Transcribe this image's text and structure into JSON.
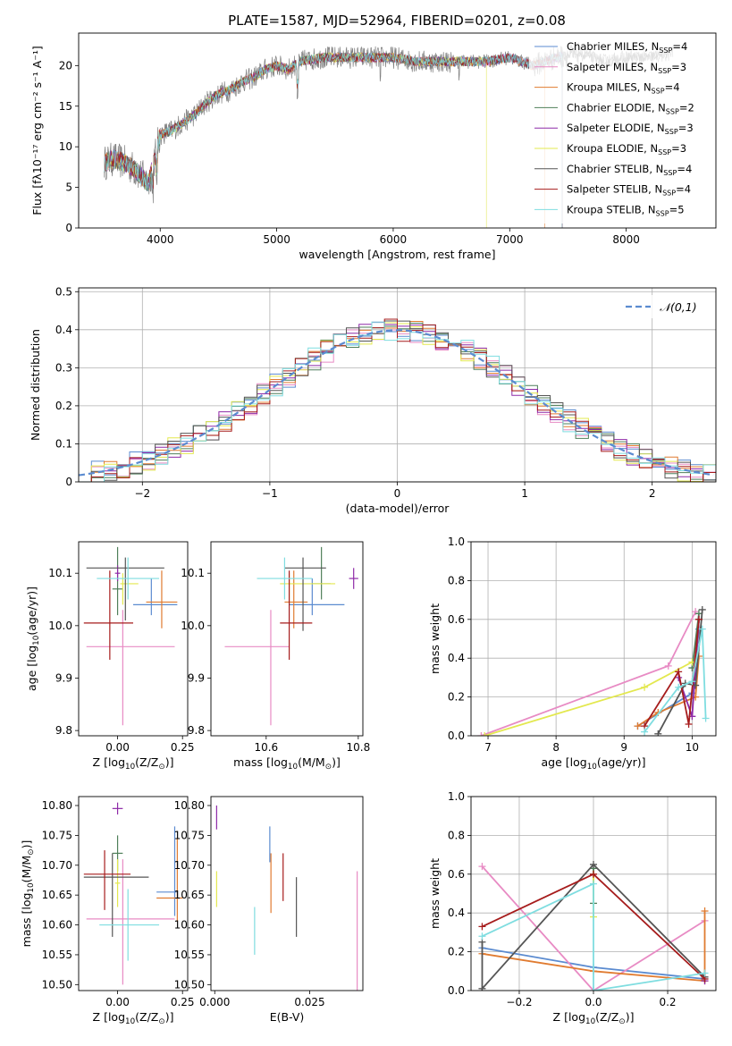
{
  "chart_data": [
    {
      "type": "line",
      "title": "PLATE=1587, MJD=52964, FIBERID=0201, z=0.08",
      "xlabel": "wavelength [Angstrom, rest frame]",
      "ylabel": "Flux [fλ10⁻¹⁷ erg cm⁻² s⁻¹ A⁻¹]",
      "xlim": [
        3300,
        8770
      ],
      "ylim": [
        0,
        24
      ],
      "xticks": [
        4000,
        5000,
        6000,
        7000,
        8000
      ],
      "yticks": [
        0,
        5,
        10,
        15,
        20
      ],
      "grid": false,
      "legend_position": "top-right",
      "continuum": {
        "x": [
          3520,
          3600,
          3700,
          3800,
          3900,
          3950,
          4000,
          4100,
          4200,
          4300,
          4400,
          4500,
          4600,
          4700,
          4800,
          4900,
          5000,
          5100,
          5200,
          5400,
          5600,
          5800,
          6000,
          6200,
          6400,
          6600,
          6800,
          7000,
          7200,
          7400,
          7600,
          7800,
          8000,
          8200,
          8400
        ],
        "y": [
          8,
          8.5,
          8,
          7,
          5.5,
          8.5,
          11.5,
          12,
          13,
          14,
          15.5,
          16.5,
          17,
          18,
          18.5,
          19.5,
          20,
          19.5,
          20.5,
          21,
          21,
          21,
          21,
          20.5,
          20.5,
          20.5,
          20.5,
          21,
          20,
          21,
          21.5,
          20.5,
          21,
          21,
          21.5
        ]
      },
      "series": [
        {
          "name": "Chabrier MILES, N$_{SSP}$=4",
          "color": "#5b8bd0"
        },
        {
          "name": "Salpeter MILES, N$_{SSP}$=3",
          "color": "#e88bc4"
        },
        {
          "name": "Kroupa MILES, N$_{SSP}$=4",
          "color": "#e07b30"
        },
        {
          "name": "Chabrier ELODIE, N$_{SSP}$=2",
          "color": "#4f7f5a"
        },
        {
          "name": "Salpeter ELODIE, N$_{SSP}$=3",
          "color": "#8e2aa8"
        },
        {
          "name": "Kroupa ELODIE, N$_{SSP}$=3",
          "color": "#e3e84f"
        },
        {
          "name": "Chabrier STELIB, N$_{SSP}$=4",
          "color": "#555555"
        },
        {
          "name": "Salpeter STELIB, N$_{SSP}$=4",
          "color": "#a61c1c"
        },
        {
          "name": "Kroupa STELIB, N$_{SSP}$=5",
          "color": "#7fdde0"
        }
      ]
    },
    {
      "type": "histogram",
      "xlabel": "(data-model)/error",
      "ylabel": "Normed distribution",
      "xlim": [
        -2.5,
        2.5
      ],
      "ylim": [
        0,
        0.51
      ],
      "xticks": [
        -2,
        -1,
        0,
        1,
        2
      ],
      "yticks": [
        0,
        0.1,
        0.2,
        0.3,
        0.4,
        0.5
      ],
      "grid": true,
      "bin_width": 0.1,
      "legend_position": "top-right",
      "reference_curve": {
        "name": "$\\mathcal{N}(0,1)$",
        "mean": 0,
        "sigma": 1,
        "color": "#5b8bd0"
      }
    },
    {
      "type": "scatter",
      "id": "age-vs-Z",
      "xlabel": "Z [log$_{10}$(Z/Z$_\\odot$)]",
      "ylabel": "age  [log$_{10}$(age/yr)]",
      "xlim": [
        -0.15,
        0.27
      ],
      "ylim": [
        9.79,
        10.16
      ],
      "xticks": [
        0,
        0.25
      ],
      "xticklabels": [
        "0.00",
        "0.25"
      ],
      "yticks": [
        9.8,
        9.9,
        10.0,
        10.1
      ],
      "yticklabels": [
        "9.8",
        "9.9",
        "10.0",
        "10.1"
      ],
      "points": [
        {
          "color": "#5b8bd0",
          "x": 0.13,
          "xerr": [
            0.07,
            0.1
          ],
          "y": 10.04,
          "yerr": [
            0.02,
            0.05
          ]
        },
        {
          "color": "#e88bc4",
          "x": 0.02,
          "xerr": [
            0.14,
            0.2
          ],
          "y": 9.96,
          "yerr": [
            0.15,
            0.07
          ]
        },
        {
          "color": "#e07b30",
          "x": 0.17,
          "xerr": [
            0.06,
            0.06
          ],
          "y": 10.045,
          "yerr": [
            0.05,
            0.06
          ]
        },
        {
          "color": "#4f7f5a",
          "x": 0.0,
          "xerr": [
            0.02,
            0.02
          ],
          "y": 10.07,
          "yerr": [
            0.05,
            0.08
          ]
        },
        {
          "color": "#8e2aa8",
          "x": 0.0,
          "xerr": [
            0.01,
            0.01
          ],
          "y": 10.1,
          "yerr": [
            0.015,
            0.015
          ]
        },
        {
          "color": "#e3e84f",
          "x": 0.02,
          "xerr": [
            0.01,
            0.06
          ],
          "y": 10.08,
          "yerr": [
            0.04,
            0.02
          ]
        },
        {
          "color": "#555555",
          "x": 0.03,
          "xerr": [
            0.15,
            0.15
          ],
          "y": 10.11,
          "yerr": [
            0.1,
            0.02
          ]
        },
        {
          "color": "#a61c1c",
          "x": -0.03,
          "xerr": [
            0.1,
            0.09
          ],
          "y": 10.005,
          "yerr": [
            0.07,
            0.1
          ]
        },
        {
          "color": "#7fdde0",
          "x": 0.04,
          "xerr": [
            0.12,
            0.12
          ],
          "y": 10.09,
          "yerr": [
            0.04,
            0.04
          ]
        }
      ]
    },
    {
      "type": "scatter",
      "id": "age-vs-mass",
      "xlabel": "mass [log$_{10}$(M/M$_\\odot$)]",
      "ylabel": "",
      "xlim": [
        10.48,
        10.81
      ],
      "ylim": [
        9.79,
        10.16
      ],
      "xticks": [
        10.6,
        10.8
      ],
      "xticklabels": [
        "10.6",
        "10.8"
      ],
      "yticks": [
        9.8,
        9.9,
        10.0,
        10.1
      ],
      "yticklabels": [
        "9.8",
        "9.9",
        "10.0",
        "10.1"
      ],
      "points": [
        {
          "color": "#5b8bd0",
          "x": 10.7,
          "xerr": [
            0.05,
            0.07
          ],
          "y": 10.04,
          "yerr": [
            0.02,
            0.05
          ]
        },
        {
          "color": "#e88bc4",
          "x": 10.61,
          "xerr": [
            0.1,
            0.04
          ],
          "y": 9.96,
          "yerr": [
            0.15,
            0.07
          ]
        },
        {
          "color": "#e07b30",
          "x": 10.66,
          "xerr": [
            0.02,
            0.03
          ],
          "y": 10.045,
          "yerr": [
            0.05,
            0.06
          ]
        },
        {
          "color": "#4f7f5a",
          "x": 10.72,
          "xerr": [
            0.02,
            0.02
          ],
          "y": 10.08,
          "yerr": [
            0.03,
            0.07
          ]
        },
        {
          "color": "#8e2aa8",
          "x": 10.79,
          "xerr": [
            0.01,
            0.01
          ],
          "y": 10.09,
          "yerr": [
            0.02,
            0.02
          ]
        },
        {
          "color": "#e3e84f",
          "x": 10.65,
          "xerr": [
            0.02,
            0.1
          ],
          "y": 10.08,
          "yerr": [
            0.04,
            0.02
          ]
        },
        {
          "color": "#555555",
          "x": 10.68,
          "xerr": [
            0.04,
            0.05
          ],
          "y": 10.11,
          "yerr": [
            0.12,
            0.02
          ]
        },
        {
          "color": "#a61c1c",
          "x": 10.65,
          "xerr": [
            0.02,
            0.05
          ],
          "y": 10.005,
          "yerr": [
            0.07,
            0.1
          ]
        },
        {
          "color": "#7fdde0",
          "x": 10.64,
          "xerr": [
            0.06,
            0.06
          ],
          "y": 10.09,
          "yerr": [
            0.04,
            0.04
          ]
        }
      ]
    },
    {
      "type": "line",
      "id": "massweight-vs-age",
      "xlabel": "age  [log$_{10}$(age/yr)]",
      "ylabel": "mass weight",
      "xlim": [
        6.75,
        10.35
      ],
      "ylim": [
        0,
        1
      ],
      "xticks": [
        7,
        8,
        9,
        10
      ],
      "yticks": [
        0,
        0.2,
        0.4,
        0.6,
        0.8,
        1.0
      ],
      "yticklabels": [
        "0.0",
        "0.2",
        "0.4",
        "0.6",
        "0.8",
        "1.0"
      ],
      "grid": true,
      "series": [
        {
          "color": "#5b8bd0",
          "x": [
            9.2,
            10.0,
            10.1
          ],
          "y": [
            0.05,
            0.22,
            0.55
          ]
        },
        {
          "color": "#e88bc4",
          "x": [
            6.9,
            9.65,
            10.05
          ],
          "y": [
            0.0,
            0.36,
            0.64
          ]
        },
        {
          "color": "#e07b30",
          "x": [
            9.2,
            9.5,
            10.05,
            10.1
          ],
          "y": [
            0.05,
            0.12,
            0.2,
            0.41
          ]
        },
        {
          "color": "#4f7f5a",
          "x": [
            10.0,
            10.1
          ],
          "y": [
            0.35,
            0.63
          ]
        },
        {
          "color": "#8e2aa8",
          "x": [
            9.8,
            10.0,
            10.1
          ],
          "y": [
            0.3,
            0.1,
            0.6
          ]
        },
        {
          "color": "#e3e84f",
          "x": [
            6.95,
            9.3,
            10.0
          ],
          "y": [
            0.0,
            0.25,
            0.38
          ]
        },
        {
          "color": "#555555",
          "x": [
            9.5,
            9.9,
            10.05,
            10.15
          ],
          "y": [
            0.01,
            0.27,
            0.26,
            0.65
          ]
        },
        {
          "color": "#a61c1c",
          "x": [
            9.3,
            9.8,
            9.95,
            10.1
          ],
          "y": [
            0.05,
            0.33,
            0.06,
            0.6
          ]
        },
        {
          "color": "#7fdde0",
          "x": [
            9.3,
            9.8,
            10.0,
            10.15,
            10.2
          ],
          "y": [
            0.02,
            0.25,
            0.28,
            0.55,
            0.09
          ]
        }
      ]
    },
    {
      "type": "scatter",
      "id": "mass-vs-Z",
      "xlabel": "Z [log$_{10}$(Z/Z$_\\odot$)]",
      "ylabel": "mass [log$_{10}$(M/M$_\\odot$)]",
      "xlim": [
        -0.15,
        0.27
      ],
      "ylim": [
        10.49,
        10.815
      ],
      "xticks": [
        0,
        0.25
      ],
      "xticklabels": [
        "0.00",
        "0.25"
      ],
      "yticks": [
        10.5,
        10.55,
        10.6,
        10.65,
        10.7,
        10.75,
        10.8
      ],
      "yticklabels": [
        "10.50",
        "10.55",
        "10.60",
        "10.65",
        "10.70",
        "10.75",
        "10.80"
      ],
      "points": [
        {
          "color": "#5b8bd0",
          "x": 0.22,
          "xerr": [
            0.07,
            0.01
          ],
          "y": 10.655,
          "yerr": [
            0.04,
            0.11
          ]
        },
        {
          "color": "#e88bc4",
          "x": 0.02,
          "xerr": [
            0.14,
            0.2
          ],
          "y": 10.61,
          "yerr": [
            0.11,
            0.1
          ]
        },
        {
          "color": "#e07b30",
          "x": 0.23,
          "xerr": [
            0.08,
            0.02
          ],
          "y": 10.645,
          "yerr": [
            0.04,
            0.1
          ]
        },
        {
          "color": "#4f7f5a",
          "x": 0.0,
          "xerr": [
            0.02,
            0.02
          ],
          "y": 10.72,
          "yerr": [
            0.03,
            0.03
          ]
        },
        {
          "color": "#8e2aa8",
          "x": 0.0,
          "xerr": [
            0.02,
            0.02
          ],
          "y": 10.795,
          "yerr": [
            0.01,
            0.01
          ]
        },
        {
          "color": "#e3e84f",
          "x": 0.0,
          "xerr": [
            0.01,
            0.01
          ],
          "y": 10.67,
          "yerr": [
            0.04,
            0.04
          ]
        },
        {
          "color": "#555555",
          "x": -0.02,
          "xerr": [
            0.11,
            0.14
          ],
          "y": 10.68,
          "yerr": [
            0.1,
            0.04
          ]
        },
        {
          "color": "#a61c1c",
          "x": -0.05,
          "xerr": [
            0.08,
            0.1
          ],
          "y": 10.685,
          "yerr": [
            0.06,
            0.04
          ]
        },
        {
          "color": "#7fdde0",
          "x": 0.04,
          "xerr": [
            0.11,
            0.12
          ],
          "y": 10.6,
          "yerr": [
            0.06,
            0.06
          ]
        }
      ]
    },
    {
      "type": "scatter",
      "id": "mass-vs-EBV",
      "xlabel": "E(B-V)",
      "ylabel": "",
      "xlim": [
        -0.001,
        0.039
      ],
      "ylim": [
        10.49,
        10.815
      ],
      "xticks": [
        0,
        0.025
      ],
      "xticklabels": [
        "0.000",
        "0.025"
      ],
      "yticks": [
        10.5,
        10.55,
        10.6,
        10.65,
        10.7,
        10.75,
        10.8
      ],
      "yticklabels": [
        "10.50",
        "10.55",
        "10.60",
        "10.65",
        "10.70",
        "10.75",
        "10.80"
      ],
      "points": [
        {
          "color": "#5b8bd0",
          "x": 0.0145,
          "xerr": [
            0,
            0
          ],
          "y": 10.735,
          "yerr": [
            0.03,
            0.03
          ]
        },
        {
          "color": "#e88bc4",
          "x": 0.0375,
          "xerr": [
            0,
            0
          ],
          "y": 10.59,
          "yerr": [
            0.1,
            0.1
          ]
        },
        {
          "color": "#e07b30",
          "x": 0.0148,
          "xerr": [
            0,
            0
          ],
          "y": 10.67,
          "yerr": [
            0.05,
            0.05
          ]
        },
        {
          "color": "#8e2aa8",
          "x": 0.0005,
          "xerr": [
            0,
            0
          ],
          "y": 10.78,
          "yerr": [
            0.02,
            0.02
          ]
        },
        {
          "color": "#e3e84f",
          "x": 0.0005,
          "xerr": [
            0,
            0
          ],
          "y": 10.66,
          "yerr": [
            0.03,
            0.03
          ]
        },
        {
          "color": "#555555",
          "x": 0.0215,
          "xerr": [
            0,
            0
          ],
          "y": 10.63,
          "yerr": [
            0.05,
            0.05
          ]
        },
        {
          "color": "#a61c1c",
          "x": 0.018,
          "xerr": [
            0,
            0
          ],
          "y": 10.68,
          "yerr": [
            0.04,
            0.04
          ]
        },
        {
          "color": "#7fdde0",
          "x": 0.0105,
          "xerr": [
            0,
            0
          ],
          "y": 10.59,
          "yerr": [
            0.04,
            0.04
          ]
        }
      ]
    },
    {
      "type": "line",
      "id": "massweight-vs-Z",
      "xlabel": "Z [log$_{10}$(Z/Z$_\\odot$)]",
      "ylabel": "mass weight",
      "xlim": [
        -0.33,
        0.33
      ],
      "ylim": [
        0,
        1
      ],
      "xticks": [
        -0.2,
        0,
        0.2
      ],
      "xticklabels": [
        "−0.2",
        "0.0",
        "0.2"
      ],
      "yticks": [
        0,
        0.2,
        0.4,
        0.6,
        0.8,
        1.0
      ],
      "yticklabels": [
        "0.0",
        "0.2",
        "0.4",
        "0.6",
        "0.8",
        "1.0"
      ],
      "grid": true,
      "series": [
        {
          "color": "#5b8bd0",
          "x": [
            -0.3,
            0.0,
            0.3
          ],
          "y": [
            0.22,
            0.12,
            0.06
          ]
        },
        {
          "color": "#e88bc4",
          "x": [
            -0.3,
            0.0,
            0.3
          ],
          "y": [
            0.64,
            0.0,
            0.36
          ]
        },
        {
          "color": "#e07b30",
          "x": [
            -0.3,
            0.0,
            0.3,
            0.3
          ],
          "y": [
            0.19,
            0.1,
            0.05,
            0.41
          ]
        },
        {
          "color": "#4f7f5a",
          "x": [
            0.0,
            0.0
          ],
          "y": [
            0.45,
            0.63
          ]
        },
        {
          "color": "#8e2aa8",
          "x": [
            0.3
          ],
          "y": [
            0.05
          ]
        },
        {
          "color": "#e3e84f",
          "x": [
            0.0,
            0.0
          ],
          "y": [
            0.38,
            0.6
          ]
        },
        {
          "color": "#555555",
          "x": [
            -0.3,
            -0.3,
            0.0,
            0.3
          ],
          "y": [
            0.25,
            0.01,
            0.65,
            0.07
          ]
        },
        {
          "color": "#a61c1c",
          "x": [
            -0.3,
            0.0,
            0.3
          ],
          "y": [
            0.33,
            0.6,
            0.06
          ]
        },
        {
          "color": "#7fdde0",
          "x": [
            -0.3,
            0.0,
            0.0,
            0.3
          ],
          "y": [
            0.28,
            0.55,
            0.0,
            0.09
          ]
        }
      ]
    }
  ]
}
